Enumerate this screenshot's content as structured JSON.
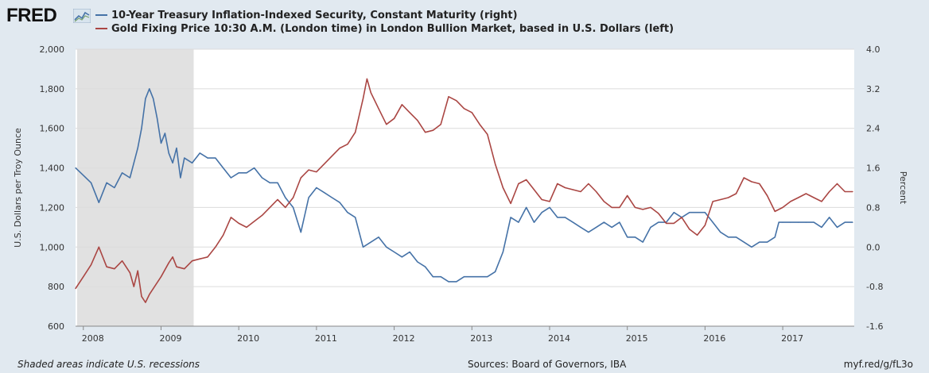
{
  "brand": {
    "name": "FRED",
    "icon": "chart-line-icon"
  },
  "colors": {
    "series_right": "#4572a7",
    "series_left": "#aa4643",
    "recession": "#e1e1e1",
    "plot_bg": "#ffffff",
    "page_bg": "#e1e9f0"
  },
  "footer": {
    "note": "Shaded areas indicate U.S. recessions",
    "sources": "Sources: Board of Governors, IBA",
    "url": "myf.red/g/fL3o"
  },
  "chart_data": {
    "type": "line",
    "grid": true,
    "legend_position": "top-left",
    "x_ticks": [
      "2008",
      "2009",
      "2010",
      "2011",
      "2012",
      "2013",
      "2014",
      "2015",
      "2016",
      "2017"
    ],
    "xlim": [
      2007.9,
      2017.92
    ],
    "left_axis": {
      "label": "U.S. Dollars per Troy Ounce",
      "lim": [
        600,
        2000
      ],
      "ticks": [
        "600",
        "800",
        "1,000",
        "1,200",
        "1,400",
        "1,600",
        "1,800",
        "2,000"
      ]
    },
    "right_axis": {
      "label": "Percent",
      "lim": [
        -1.6,
        4.0
      ],
      "ticks": [
        "-1.6",
        "-0.8",
        "0.0",
        "0.8",
        "1.6",
        "2.4",
        "3.2",
        "4.0"
      ]
    },
    "recessions": [
      [
        2007.92,
        2009.42
      ]
    ],
    "series": [
      {
        "name": "10-Year Treasury Inflation-Indexed Security, Constant Maturity (right)",
        "axis": "right",
        "color": "#4572a7",
        "points": [
          [
            2007.9,
            1.6
          ],
          [
            2008.0,
            1.45
          ],
          [
            2008.1,
            1.3
          ],
          [
            2008.2,
            0.9
          ],
          [
            2008.3,
            1.3
          ],
          [
            2008.4,
            1.2
          ],
          [
            2008.5,
            1.5
          ],
          [
            2008.6,
            1.4
          ],
          [
            2008.65,
            1.7
          ],
          [
            2008.7,
            2.0
          ],
          [
            2008.75,
            2.4
          ],
          [
            2008.8,
            3.0
          ],
          [
            2008.85,
            3.2
          ],
          [
            2008.9,
            3.0
          ],
          [
            2008.95,
            2.6
          ],
          [
            2009.0,
            2.1
          ],
          [
            2009.05,
            2.3
          ],
          [
            2009.1,
            1.9
          ],
          [
            2009.15,
            1.7
          ],
          [
            2009.2,
            2.0
          ],
          [
            2009.25,
            1.4
          ],
          [
            2009.3,
            1.8
          ],
          [
            2009.4,
            1.7
          ],
          [
            2009.5,
            1.9
          ],
          [
            2009.6,
            1.8
          ],
          [
            2009.7,
            1.8
          ],
          [
            2009.8,
            1.6
          ],
          [
            2009.9,
            1.4
          ],
          [
            2010.0,
            1.5
          ],
          [
            2010.1,
            1.5
          ],
          [
            2010.2,
            1.6
          ],
          [
            2010.3,
            1.4
          ],
          [
            2010.4,
            1.3
          ],
          [
            2010.5,
            1.3
          ],
          [
            2010.6,
            1.0
          ],
          [
            2010.7,
            0.8
          ],
          [
            2010.8,
            0.3
          ],
          [
            2010.9,
            1.0
          ],
          [
            2011.0,
            1.2
          ],
          [
            2011.1,
            1.1
          ],
          [
            2011.2,
            1.0
          ],
          [
            2011.3,
            0.9
          ],
          [
            2011.4,
            0.7
          ],
          [
            2011.5,
            0.6
          ],
          [
            2011.6,
            0.0
          ],
          [
            2011.7,
            0.1
          ],
          [
            2011.8,
            0.2
          ],
          [
            2011.9,
            0.0
          ],
          [
            2012.0,
            -0.1
          ],
          [
            2012.1,
            -0.2
          ],
          [
            2012.2,
            -0.1
          ],
          [
            2012.3,
            -0.3
          ],
          [
            2012.4,
            -0.4
          ],
          [
            2012.5,
            -0.6
          ],
          [
            2012.6,
            -0.6
          ],
          [
            2012.7,
            -0.7
          ],
          [
            2012.8,
            -0.7
          ],
          [
            2012.9,
            -0.6
          ],
          [
            2013.0,
            -0.6
          ],
          [
            2013.1,
            -0.6
          ],
          [
            2013.2,
            -0.6
          ],
          [
            2013.3,
            -0.5
          ],
          [
            2013.4,
            -0.1
          ],
          [
            2013.5,
            0.6
          ],
          [
            2013.6,
            0.5
          ],
          [
            2013.7,
            0.8
          ],
          [
            2013.8,
            0.5
          ],
          [
            2013.9,
            0.7
          ],
          [
            2014.0,
            0.8
          ],
          [
            2014.1,
            0.6
          ],
          [
            2014.2,
            0.6
          ],
          [
            2014.3,
            0.5
          ],
          [
            2014.4,
            0.4
          ],
          [
            2014.5,
            0.3
          ],
          [
            2014.6,
            0.4
          ],
          [
            2014.7,
            0.5
          ],
          [
            2014.8,
            0.4
          ],
          [
            2014.9,
            0.5
          ],
          [
            2015.0,
            0.2
          ],
          [
            2015.1,
            0.2
          ],
          [
            2015.2,
            0.1
          ],
          [
            2015.3,
            0.4
          ],
          [
            2015.4,
            0.5
          ],
          [
            2015.5,
            0.5
          ],
          [
            2015.6,
            0.7
          ],
          [
            2015.7,
            0.6
          ],
          [
            2015.8,
            0.7
          ],
          [
            2015.9,
            0.7
          ],
          [
            2016.0,
            0.7
          ],
          [
            2016.1,
            0.5
          ],
          [
            2016.2,
            0.3
          ],
          [
            2016.3,
            0.2
          ],
          [
            2016.4,
            0.2
          ],
          [
            2016.5,
            0.1
          ],
          [
            2016.6,
            0.0
          ],
          [
            2016.7,
            0.1
          ],
          [
            2016.8,
            0.1
          ],
          [
            2016.9,
            0.2
          ],
          [
            2016.95,
            0.5
          ],
          [
            2017.0,
            0.5
          ],
          [
            2017.1,
            0.5
          ],
          [
            2017.2,
            0.5
          ],
          [
            2017.3,
            0.5
          ],
          [
            2017.4,
            0.5
          ],
          [
            2017.5,
            0.4
          ],
          [
            2017.6,
            0.6
          ],
          [
            2017.7,
            0.4
          ],
          [
            2017.8,
            0.5
          ],
          [
            2017.9,
            0.5
          ]
        ]
      },
      {
        "name": "Gold Fixing Price 10:30 A.M. (London time) in London Bullion Market, based in U.S. Dollars (left)",
        "axis": "left",
        "color": "#aa4643",
        "points": [
          [
            2007.9,
            790
          ],
          [
            2008.0,
            850
          ],
          [
            2008.1,
            910
          ],
          [
            2008.2,
            1000
          ],
          [
            2008.3,
            900
          ],
          [
            2008.4,
            890
          ],
          [
            2008.5,
            930
          ],
          [
            2008.6,
            870
          ],
          [
            2008.65,
            800
          ],
          [
            2008.7,
            880
          ],
          [
            2008.75,
            750
          ],
          [
            2008.8,
            720
          ],
          [
            2008.85,
            760
          ],
          [
            2008.9,
            790
          ],
          [
            2009.0,
            850
          ],
          [
            2009.1,
            920
          ],
          [
            2009.15,
            950
          ],
          [
            2009.2,
            900
          ],
          [
            2009.3,
            890
          ],
          [
            2009.4,
            930
          ],
          [
            2009.5,
            940
          ],
          [
            2009.6,
            950
          ],
          [
            2009.7,
            1000
          ],
          [
            2009.8,
            1060
          ],
          [
            2009.9,
            1150
          ],
          [
            2010.0,
            1120
          ],
          [
            2010.1,
            1100
          ],
          [
            2010.2,
            1130
          ],
          [
            2010.3,
            1160
          ],
          [
            2010.4,
            1200
          ],
          [
            2010.5,
            1240
          ],
          [
            2010.6,
            1200
          ],
          [
            2010.7,
            1250
          ],
          [
            2010.8,
            1350
          ],
          [
            2010.9,
            1390
          ],
          [
            2011.0,
            1380
          ],
          [
            2011.1,
            1420
          ],
          [
            2011.2,
            1460
          ],
          [
            2011.3,
            1500
          ],
          [
            2011.4,
            1520
          ],
          [
            2011.5,
            1580
          ],
          [
            2011.6,
            1750
          ],
          [
            2011.65,
            1850
          ],
          [
            2011.7,
            1780
          ],
          [
            2011.8,
            1700
          ],
          [
            2011.9,
            1620
          ],
          [
            2012.0,
            1650
          ],
          [
            2012.1,
            1720
          ],
          [
            2012.2,
            1680
          ],
          [
            2012.3,
            1640
          ],
          [
            2012.4,
            1580
          ],
          [
            2012.5,
            1590
          ],
          [
            2012.6,
            1620
          ],
          [
            2012.7,
            1760
          ],
          [
            2012.8,
            1740
          ],
          [
            2012.9,
            1700
          ],
          [
            2013.0,
            1680
          ],
          [
            2013.1,
            1620
          ],
          [
            2013.2,
            1570
          ],
          [
            2013.3,
            1420
          ],
          [
            2013.4,
            1300
          ],
          [
            2013.5,
            1220
          ],
          [
            2013.6,
            1320
          ],
          [
            2013.7,
            1340
          ],
          [
            2013.8,
            1290
          ],
          [
            2013.9,
            1240
          ],
          [
            2014.0,
            1230
          ],
          [
            2014.1,
            1320
          ],
          [
            2014.2,
            1300
          ],
          [
            2014.3,
            1290
          ],
          [
            2014.4,
            1280
          ],
          [
            2014.5,
            1320
          ],
          [
            2014.6,
            1280
          ],
          [
            2014.7,
            1230
          ],
          [
            2014.8,
            1200
          ],
          [
            2014.9,
            1200
          ],
          [
            2015.0,
            1260
          ],
          [
            2015.1,
            1200
          ],
          [
            2015.2,
            1190
          ],
          [
            2015.3,
            1200
          ],
          [
            2015.4,
            1170
          ],
          [
            2015.5,
            1120
          ],
          [
            2015.6,
            1120
          ],
          [
            2015.7,
            1150
          ],
          [
            2015.8,
            1090
          ],
          [
            2015.9,
            1060
          ],
          [
            2016.0,
            1110
          ],
          [
            2016.1,
            1230
          ],
          [
            2016.2,
            1240
          ],
          [
            2016.3,
            1250
          ],
          [
            2016.4,
            1270
          ],
          [
            2016.5,
            1350
          ],
          [
            2016.6,
            1330
          ],
          [
            2016.7,
            1320
          ],
          [
            2016.8,
            1260
          ],
          [
            2016.9,
            1180
          ],
          [
            2017.0,
            1200
          ],
          [
            2017.1,
            1230
          ],
          [
            2017.2,
            1250
          ],
          [
            2017.3,
            1270
          ],
          [
            2017.4,
            1250
          ],
          [
            2017.5,
            1230
          ],
          [
            2017.6,
            1280
          ],
          [
            2017.7,
            1320
          ],
          [
            2017.8,
            1280
          ],
          [
            2017.9,
            1280
          ]
        ]
      }
    ]
  }
}
